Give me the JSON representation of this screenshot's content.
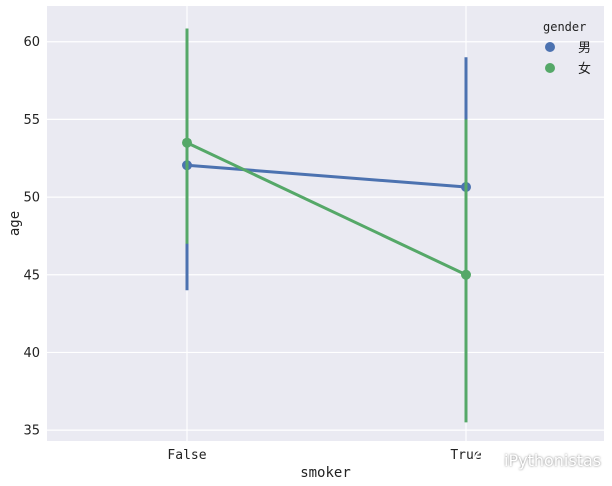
{
  "chart_data": {
    "type": "line",
    "title": "",
    "xlabel": "smoker",
    "ylabel": "age",
    "categories": [
      "False",
      "True"
    ],
    "ylim": [
      34.3,
      62.3
    ],
    "yticks": [
      35,
      40,
      45,
      50,
      55,
      60
    ],
    "grid": true,
    "legend": {
      "title": "gender",
      "placement": "top-right"
    },
    "series": [
      {
        "name": "男",
        "color": "#4c72b0",
        "values": [
          52.05,
          50.65
        ],
        "ci_low": [
          44.0,
          43.2
        ],
        "ci_high": [
          60.0,
          59.0
        ]
      },
      {
        "name": "女",
        "color": "#55a868",
        "values": [
          53.5,
          45.0
        ],
        "ci_low": [
          47.0,
          35.5
        ],
        "ci_high": [
          60.85,
          55.0
        ]
      }
    ]
  },
  "watermark": {
    "text": "iPythonistas",
    "icon": "wechat-icon"
  }
}
